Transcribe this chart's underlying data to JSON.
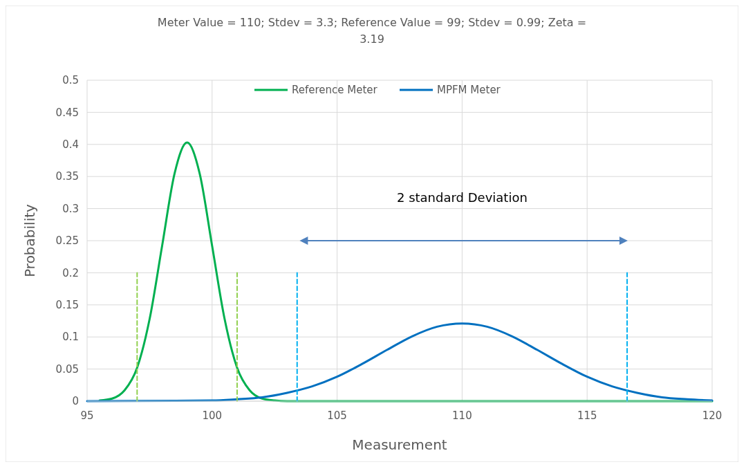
{
  "chart_data": {
    "type": "line",
    "title": "Meter  Value = 110; Stdev = 3.3; Reference  Value = 99; Stdev = 0.99; Zeta = 3.19",
    "xlabel": "Measurement",
    "ylabel": "Probability",
    "xlim": [
      95,
      120
    ],
    "xticks": [
      95,
      100,
      105,
      110,
      115,
      120
    ],
    "ylim": [
      0,
      0.5
    ],
    "yticks": [
      0,
      0.05,
      0.1,
      0.15,
      0.2,
      0.25,
      0.3,
      0.35,
      0.4,
      0.45,
      0.5
    ],
    "grid": true,
    "legend": "top",
    "marker": "none",
    "annotations": [
      "2 standard Deviation"
    ],
    "series": [
      {
        "name": "Reference Meter",
        "color": "#00b050",
        "x": [
          95.5,
          96,
          96.5,
          97,
          97.5,
          98,
          98.5,
          99,
          99.5,
          100,
          100.5,
          101,
          101.5,
          102,
          102.5,
          103,
          120
        ],
        "values": [
          0.001,
          0.004,
          0.017,
          0.052,
          0.128,
          0.242,
          0.355,
          0.403,
          0.355,
          0.242,
          0.128,
          0.052,
          0.017,
          0.004,
          0.001,
          0,
          0
        ]
      },
      {
        "name": "MPFM Meter",
        "color": "#0070c0",
        "x": [
          95,
          100,
          101,
          102,
          103,
          104,
          105,
          106,
          107,
          108,
          109,
          110,
          111,
          112,
          113,
          114,
          115,
          116,
          117,
          118,
          119,
          120
        ],
        "values": [
          0,
          0.001,
          0.003,
          0.006,
          0.013,
          0.023,
          0.038,
          0.058,
          0.08,
          0.101,
          0.116,
          0.121,
          0.116,
          0.101,
          0.08,
          0.058,
          0.038,
          0.023,
          0.013,
          0.006,
          0.003,
          0.001
        ]
      },
      {
        "color": "#92d050",
        "line_style": "dashed",
        "x": [
          97,
          97
        ],
        "values": [
          0,
          0.2
        ]
      },
      {
        "color": "#92d050",
        "line_style": "dashed",
        "x": [
          101,
          101
        ],
        "values": [
          0,
          0.2
        ]
      },
      {
        "color": "#00b0f0",
        "line_style": "dashed",
        "x": [
          103.4,
          103.4
        ],
        "values": [
          0,
          0.2
        ]
      },
      {
        "color": "#00b0f0",
        "line_style": "dashed",
        "x": [
          116.6,
          116.6
        ],
        "values": [
          0,
          0.2
        ]
      }
    ]
  }
}
